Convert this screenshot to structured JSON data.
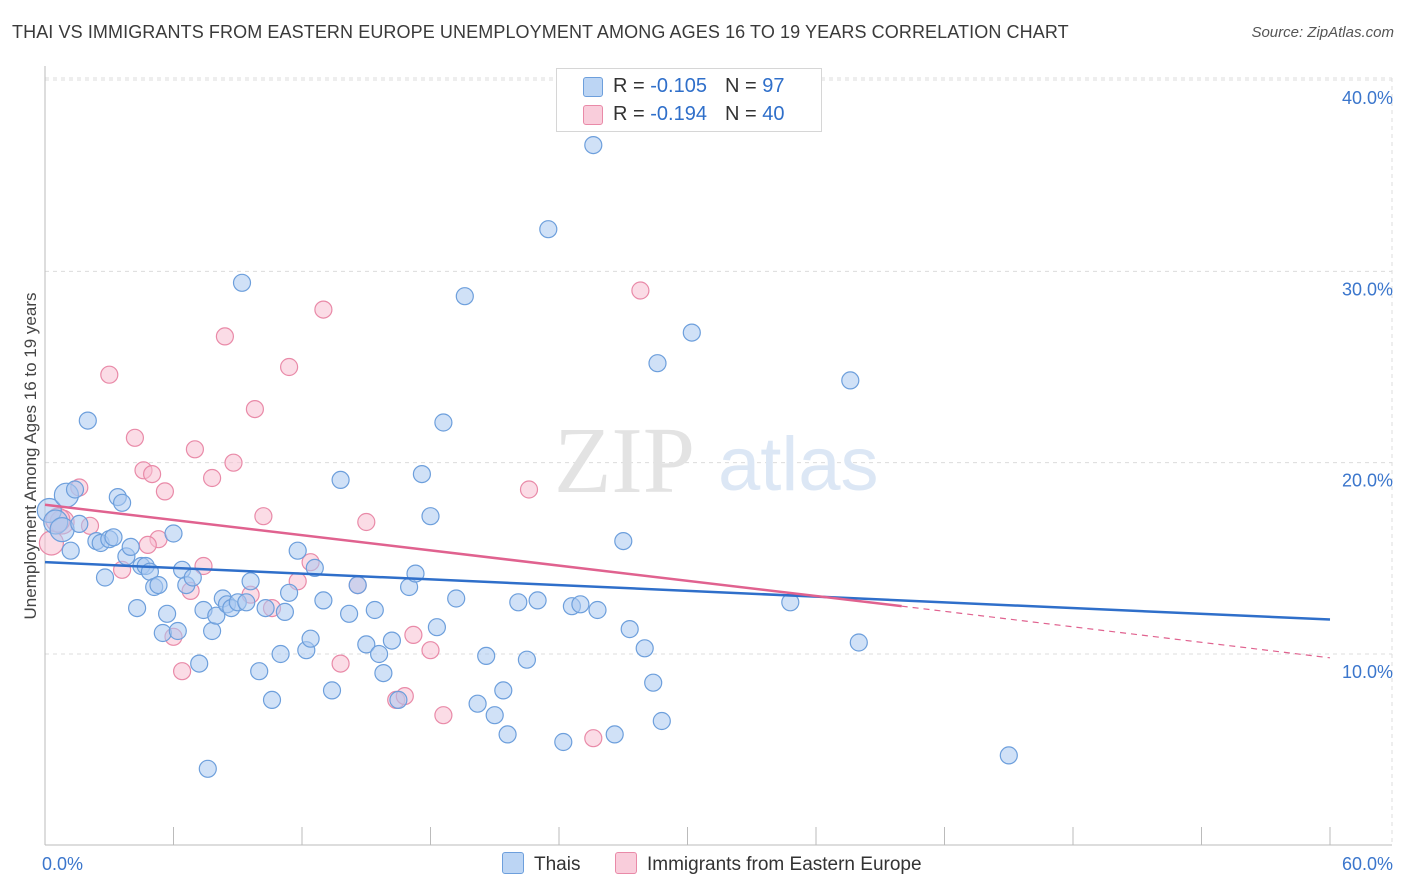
{
  "title": "THAI VS IMMIGRANTS FROM EASTERN EUROPE UNEMPLOYMENT AMONG AGES 16 TO 19 YEARS CORRELATION CHART",
  "source": "Source: ZipAtlas.com",
  "watermark": {
    "zip": "ZIP",
    "atlas": "atlas"
  },
  "legend": {
    "rows": [
      {
        "r_label": "R = ",
        "r_value": "-0.105",
        "n_label": "N = ",
        "n_value": "97"
      },
      {
        "r_label": "R = ",
        "r_value": "-0.194",
        "n_label": "N = ",
        "n_value": "40"
      }
    ]
  },
  "colors": {
    "thais_fill": "#a9c8f0",
    "thais_stroke": "#6d9fdc",
    "thais_line": "#2f6fca",
    "imm_fill": "#f7bfd1",
    "imm_stroke": "#e98aa8",
    "imm_line": "#e0628f",
    "axis_label": "#3b76cc",
    "grid": "#dcdcdc"
  },
  "chart_data": {
    "type": "scatter",
    "title": "THAI VS IMMIGRANTS FROM EASTERN EUROPE UNEMPLOYMENT AMONG AGES 16 TO 19 YEARS CORRELATION CHART",
    "xlabel": "",
    "ylabel": "Unemployment Among Ages 16 to 19 years",
    "xlim": [
      0,
      60
    ],
    "ylim": [
      0,
      41
    ],
    "x_tick_labels": [
      "0.0%",
      "60.0%"
    ],
    "y_ticks": [
      10,
      20,
      30,
      40
    ],
    "y_tick_labels": [
      "10.0%",
      "20.0%",
      "30.0%",
      "40.0%"
    ],
    "grid": true,
    "legend_position": "top-center",
    "series": [
      {
        "name": "Thais",
        "trend": {
          "x": [
            0,
            60
          ],
          "y": [
            14.8,
            11.8
          ],
          "style": "solid"
        },
        "points": [
          [
            0.2,
            17.5
          ],
          [
            0.5,
            16.9
          ],
          [
            0.8,
            16.5
          ],
          [
            1.0,
            18.3
          ],
          [
            1.2,
            15.4
          ],
          [
            1.4,
            18.6
          ],
          [
            1.6,
            16.8
          ],
          [
            2.0,
            22.2
          ],
          [
            2.4,
            15.9
          ],
          [
            2.6,
            15.8
          ],
          [
            2.8,
            14.0
          ],
          [
            3.0,
            16.0
          ],
          [
            3.2,
            16.1
          ],
          [
            3.4,
            18.2
          ],
          [
            3.6,
            17.9
          ],
          [
            3.8,
            15.1
          ],
          [
            4.0,
            15.6
          ],
          [
            4.3,
            12.4
          ],
          [
            4.5,
            14.6
          ],
          [
            4.7,
            14.6
          ],
          [
            4.9,
            14.3
          ],
          [
            5.1,
            13.5
          ],
          [
            5.3,
            13.6
          ],
          [
            5.5,
            11.1
          ],
          [
            5.7,
            12.1
          ],
          [
            6.0,
            16.3
          ],
          [
            6.2,
            11.2
          ],
          [
            6.4,
            14.4
          ],
          [
            6.6,
            13.6
          ],
          [
            6.9,
            14.0
          ],
          [
            7.2,
            9.5
          ],
          [
            7.4,
            12.3
          ],
          [
            7.6,
            4.0
          ],
          [
            7.8,
            11.2
          ],
          [
            8.0,
            12.0
          ],
          [
            8.3,
            12.9
          ],
          [
            8.5,
            12.6
          ],
          [
            8.7,
            12.4
          ],
          [
            9.0,
            12.7
          ],
          [
            9.2,
            29.4
          ],
          [
            9.4,
            12.7
          ],
          [
            9.6,
            13.8
          ],
          [
            10.0,
            9.1
          ],
          [
            10.3,
            12.4
          ],
          [
            10.6,
            7.6
          ],
          [
            11.0,
            10.0
          ],
          [
            11.2,
            12.2
          ],
          [
            11.4,
            13.2
          ],
          [
            11.8,
            15.4
          ],
          [
            12.2,
            10.2
          ],
          [
            12.4,
            10.8
          ],
          [
            12.6,
            14.5
          ],
          [
            13.0,
            12.8
          ],
          [
            13.4,
            8.1
          ],
          [
            13.8,
            19.1
          ],
          [
            14.2,
            12.1
          ],
          [
            14.6,
            13.6
          ],
          [
            15.0,
            10.5
          ],
          [
            15.4,
            12.3
          ],
          [
            15.6,
            10.0
          ],
          [
            15.8,
            9.0
          ],
          [
            16.2,
            10.7
          ],
          [
            16.5,
            7.6
          ],
          [
            17.0,
            13.5
          ],
          [
            17.3,
            14.2
          ],
          [
            17.6,
            19.4
          ],
          [
            18.0,
            17.2
          ],
          [
            18.3,
            11.4
          ],
          [
            18.6,
            22.1
          ],
          [
            19.2,
            12.9
          ],
          [
            19.6,
            28.7
          ],
          [
            20.2,
            7.4
          ],
          [
            20.6,
            9.9
          ],
          [
            21.0,
            6.8
          ],
          [
            21.4,
            8.1
          ],
          [
            21.6,
            5.8
          ],
          [
            22.1,
            12.7
          ],
          [
            22.5,
            9.7
          ],
          [
            23.0,
            12.8
          ],
          [
            23.5,
            32.2
          ],
          [
            24.2,
            5.4
          ],
          [
            24.6,
            12.5
          ],
          [
            25.0,
            12.6
          ],
          [
            25.6,
            36.6
          ],
          [
            25.8,
            12.3
          ],
          [
            26.6,
            5.8
          ],
          [
            27.0,
            15.9
          ],
          [
            27.3,
            11.3
          ],
          [
            28.0,
            10.3
          ],
          [
            28.4,
            8.5
          ],
          [
            28.6,
            25.2
          ],
          [
            28.8,
            6.5
          ],
          [
            30.2,
            26.8
          ],
          [
            34.8,
            12.7
          ],
          [
            37.6,
            24.3
          ],
          [
            38.0,
            10.6
          ],
          [
            45.0,
            4.7
          ]
        ]
      },
      {
        "name": "Immigrants from Eastern Europe",
        "trend": {
          "x": [
            0,
            40
          ],
          "y": [
            17.8,
            12.5
          ],
          "style": "solid",
          "extension": {
            "x": [
              40,
              60
            ],
            "y": [
              12.5,
              9.8
            ],
            "style": "dashed"
          }
        },
        "points": [
          [
            0.3,
            15.8
          ],
          [
            0.8,
            16.9
          ],
          [
            1.6,
            18.7
          ],
          [
            2.1,
            16.7
          ],
          [
            3.0,
            24.6
          ],
          [
            3.6,
            14.4
          ],
          [
            4.2,
            21.3
          ],
          [
            4.6,
            19.6
          ],
          [
            5.0,
            19.4
          ],
          [
            5.3,
            16.0
          ],
          [
            5.6,
            18.5
          ],
          [
            6.0,
            10.9
          ],
          [
            6.4,
            9.1
          ],
          [
            6.8,
            13.3
          ],
          [
            7.0,
            20.7
          ],
          [
            7.4,
            14.6
          ],
          [
            7.8,
            19.2
          ],
          [
            8.4,
            26.6
          ],
          [
            8.8,
            20.0
          ],
          [
            9.8,
            22.8
          ],
          [
            10.2,
            17.2
          ],
          [
            10.6,
            12.4
          ],
          [
            11.4,
            25.0
          ],
          [
            11.8,
            13.8
          ],
          [
            12.4,
            14.8
          ],
          [
            13.0,
            28.0
          ],
          [
            13.8,
            9.5
          ],
          [
            14.6,
            13.6
          ],
          [
            15.0,
            16.9
          ],
          [
            16.4,
            7.6
          ],
          [
            17.2,
            11.0
          ],
          [
            18.0,
            10.2
          ],
          [
            18.6,
            6.8
          ],
          [
            22.6,
            18.6
          ],
          [
            25.6,
            5.6
          ],
          [
            27.8,
            29.0
          ],
          [
            0.6,
            17.0
          ],
          [
            9.6,
            13.1
          ],
          [
            16.8,
            7.8
          ],
          [
            4.8,
            15.7
          ]
        ]
      }
    ]
  },
  "bottom_legend": {
    "items": [
      {
        "label": "Thais"
      },
      {
        "label": "Immigrants from Eastern Europe"
      }
    ]
  }
}
